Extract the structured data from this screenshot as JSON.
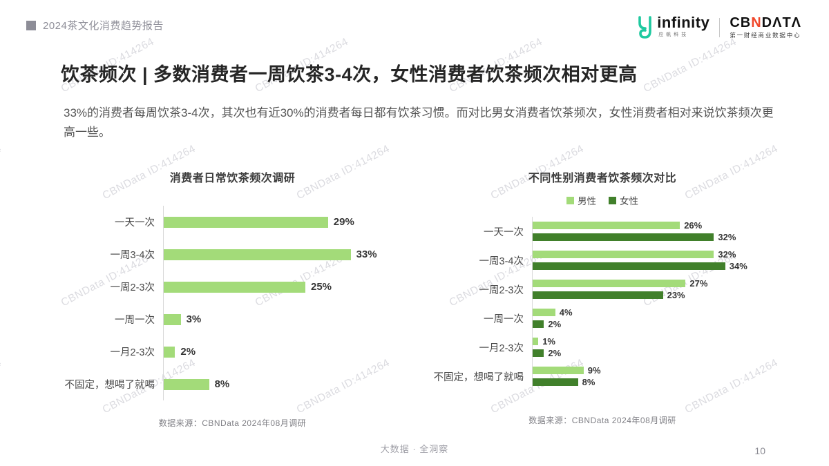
{
  "header": {
    "report_title": "2024茶文化消费趋势报告",
    "logo_infinity": {
      "text": "infinity",
      "subtext": "应帆科技"
    },
    "logo_cbndata": {
      "text_cb": "CB",
      "text_n": "N",
      "text_data": "DΛTΛ",
      "subtitle": "第一财经商业数据中心"
    }
  },
  "watermark": {
    "text": "CBNData ID:414264"
  },
  "title": "饮茶频次 | 多数消费者一周饮茶3-4次，女性消费者饮茶频次相对更高",
  "description": "33%的消费者每周饮茶3-4次，其次也有近30%的消费者每日都有饮茶习惯。而对比男女消费者饮茶频次，女性消费者相对来说饮茶频次更高一些。",
  "colors": {
    "light_green": "#a3db79",
    "dark_green": "#41802b",
    "logo_teal": "#1fc9a0",
    "logo_red": "#f0472a",
    "header_gray": "#8d8d97"
  },
  "chart_data": [
    {
      "type": "bar",
      "orientation": "horizontal",
      "title": "消费者日常饮茶频次调研",
      "categories": [
        "一天一次",
        "一周3-4次",
        "一周2-3次",
        "一周一次",
        "一月2-3次",
        "不固定，想喝了就喝"
      ],
      "values": [
        29,
        33,
        25,
        3,
        2,
        8
      ],
      "unit": "%",
      "xlim": [
        0,
        35
      ],
      "grid": false,
      "bar_color_key": "light_green",
      "source": "数据来源：CBNData 2024年08月调研"
    },
    {
      "type": "bar",
      "orientation": "horizontal",
      "title": "不同性别消费者饮茶频次对比",
      "categories": [
        "一天一次",
        "一周3-4次",
        "一周2-3次",
        "一周一次",
        "一月2-3次",
        "不固定，想喝了就喝"
      ],
      "series": [
        {
          "name": "男性",
          "color_key": "light_green",
          "values": [
            26,
            32,
            27,
            4,
            1,
            9
          ]
        },
        {
          "name": "女性",
          "color_key": "dark_green",
          "values": [
            32,
            34,
            23,
            2,
            2,
            8
          ]
        }
      ],
      "unit": "%",
      "xlim": [
        0,
        35
      ],
      "grid": false,
      "legend_position": "top",
      "source": "数据来源：CBNData 2024年08月调研"
    }
  ],
  "footer": {
    "center_text": "大数据 · 全洞察",
    "page_number": "10"
  }
}
